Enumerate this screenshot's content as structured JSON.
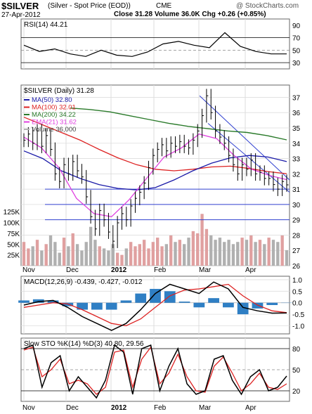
{
  "header": {
    "symbol": "$SILVER",
    "description": "(Silver - Spot Price (EOD))",
    "exchange": "CME",
    "watermark": "@ StockCharts.com",
    "date": "27-Apr-2012",
    "quote": "Close 31.28  Volume 36.0K  Chg +0.26 (+0.85%)"
  },
  "colors": {
    "price_bar": "#000000",
    "ma50": "#1a1aa8",
    "ma100": "#dd2222",
    "ma200": "#2a7a2a",
    "ema21": "#e040e0",
    "trendline": "#3040d0",
    "volume_up": "#e0a0a0",
    "volume_down": "#b0b0b0",
    "macd_hist": "#2f7fc4",
    "macd_signal": "#dd2222",
    "sto_d": "#dd2222",
    "grid": "#dddddd",
    "panel_border": "#666666"
  },
  "chart_data": [
    {
      "type": "line",
      "title": "RSI(14) 44.21",
      "indicator_value": 44.21,
      "y_ticks": [
        90,
        70,
        50,
        30
      ],
      "ylim": [
        20,
        100
      ],
      "reference_lines": [
        70,
        50,
        30
      ],
      "x": [
        "Nov",
        "Nov",
        "Nov",
        "Dec",
        "Dec",
        "Dec",
        "Jan",
        "Jan",
        "Jan",
        "Feb",
        "Feb",
        "Feb",
        "Mar",
        "Mar",
        "Mar",
        "Apr",
        "Apr",
        "Apr"
      ],
      "values": [
        58,
        48,
        52,
        44,
        40,
        50,
        42,
        40,
        47,
        60,
        64,
        58,
        54,
        78,
        56,
        48,
        44,
        44
      ]
    },
    {
      "type": "line",
      "title": "$SILVER (Daily) 31.28",
      "y_ticks": [
        37,
        36,
        35,
        34,
        33,
        32,
        31,
        30,
        29,
        28,
        27,
        26
      ],
      "ylim": [
        26,
        37.8
      ],
      "x_ticks": [
        "Nov",
        "Dec",
        "2012",
        "Feb",
        "Mar",
        "Apr"
      ],
      "volume_ticks": [
        "125K",
        "100K",
        "75K",
        "50K",
        "25K"
      ],
      "volume_ylim": [
        0,
        140
      ],
      "legend": [
        {
          "label": "MA(50) 32.80",
          "color": "#1a1aa8"
        },
        {
          "label": "MA(100) 32.01",
          "color": "#dd2222"
        },
        {
          "label": "MA(200) 34.22",
          "color": "#2a7a2a"
        },
        {
          "label": "EMA(21) 31.62",
          "color": "#e040e0"
        },
        {
          "label": "Volume 36,000",
          "color": "#b0b0b0"
        }
      ],
      "horizontal_lines": [
        31.0,
        30.0,
        29.0
      ],
      "price_close": [
        34.2,
        34.6,
        34.0,
        34.8,
        33.8,
        34.5,
        33.6,
        32.0,
        31.5,
        32.6,
        32.0,
        32.8,
        32.2,
        31.8,
        30.5,
        29.2,
        28.4,
        29.6,
        29.0,
        28.2,
        27.6,
        28.8,
        29.4,
        29.0,
        29.9,
        30.4,
        30.8,
        31.4,
        32.4,
        33.2,
        33.6,
        33.9,
        33.5,
        34.0,
        33.8,
        34.1,
        33.8,
        33.7,
        34.2,
        34.8,
        35.8,
        37.1,
        36.0,
        34.8,
        34.4,
        34.0,
        33.2,
        32.6,
        32.0,
        32.6,
        32.3,
        32.9,
        32.0,
        32.1,
        31.7,
        31.7,
        31.3,
        31.0,
        31.5,
        31.28
      ],
      "ma50": [
        33.5,
        33.0,
        32.2,
        31.7,
        31.3,
        31.05,
        30.95,
        31.1,
        31.6,
        32.2,
        32.7,
        33.05,
        33.2,
        33.1,
        32.8
      ],
      "ma100": [
        35.7,
        35.2,
        34.7,
        34.2,
        33.6,
        33.05,
        32.6,
        32.3,
        32.2,
        32.3,
        32.45,
        32.5,
        32.35,
        32.15,
        32.01
      ],
      "ma200": [
        36.3,
        36.2,
        36.05,
        35.8,
        35.55,
        35.3,
        35.1,
        34.95,
        34.8,
        34.7,
        34.5,
        34.22
      ],
      "ema21": [
        34.4,
        33.7,
        32.4,
        30.4,
        29.4,
        29.2,
        30.3,
        31.7,
        33.1,
        33.7,
        34.6,
        34.3,
        33.2,
        32.3,
        31.9,
        31.62
      ],
      "volume": [
        55,
        40,
        45,
        60,
        35,
        50,
        70,
        55,
        30,
        65,
        45,
        75,
        50,
        35,
        55,
        90,
        60,
        45,
        40,
        35,
        50,
        30,
        25,
        40,
        55,
        45,
        50,
        60,
        40,
        55,
        65,
        45,
        50,
        70,
        55,
        60,
        50,
        65,
        80,
        75,
        120,
        85,
        70,
        60,
        65,
        55,
        60,
        50,
        55,
        65,
        60,
        70,
        55,
        60,
        50,
        65,
        60,
        55,
        70,
        36
      ]
    },
    {
      "type": "line",
      "title": "MACD(12,26,9) -0.439, -0.427, -0.012",
      "y_ticks": [
        1.0,
        0.5,
        0.0,
        -0.5,
        -1.0
      ],
      "ylim": [
        -1.35,
        1.15
      ],
      "macd": [
        -0.1,
        0.05,
        0.1,
        -0.2,
        -0.6,
        -0.9,
        -1.2,
        -0.9,
        -0.3,
        0.4,
        0.8,
        0.6,
        0.4,
        0.9,
        0.6,
        -0.2,
        -0.35,
        -0.45,
        -0.44
      ],
      "signal": [
        -0.2,
        -0.1,
        0.0,
        -0.05,
        -0.3,
        -0.6,
        -0.9,
        -1.0,
        -0.7,
        -0.2,
        0.3,
        0.55,
        0.6,
        0.7,
        0.8,
        0.3,
        -0.1,
        -0.35,
        -0.43
      ]
    },
    {
      "type": "line",
      "title": "Slow STO %K(14) %D(3) 40.80, 29.56",
      "y_ticks": [
        80,
        50,
        20
      ],
      "ylim": [
        5,
        95
      ],
      "reference_lines": [
        80,
        20
      ],
      "k": [
        80,
        85,
        25,
        60,
        70,
        20,
        40,
        25,
        10,
        35,
        85,
        75,
        15,
        80,
        85,
        20,
        55,
        80,
        30,
        15,
        20,
        65,
        70,
        35,
        15,
        40,
        50,
        20,
        25,
        41
      ],
      "d": [
        78,
        82,
        40,
        50,
        65,
        30,
        35,
        30,
        15,
        25,
        75,
        78,
        25,
        65,
        82,
        30,
        45,
        72,
        40,
        20,
        18,
        55,
        68,
        45,
        20,
        30,
        45,
        25,
        22,
        30
      ]
    }
  ]
}
